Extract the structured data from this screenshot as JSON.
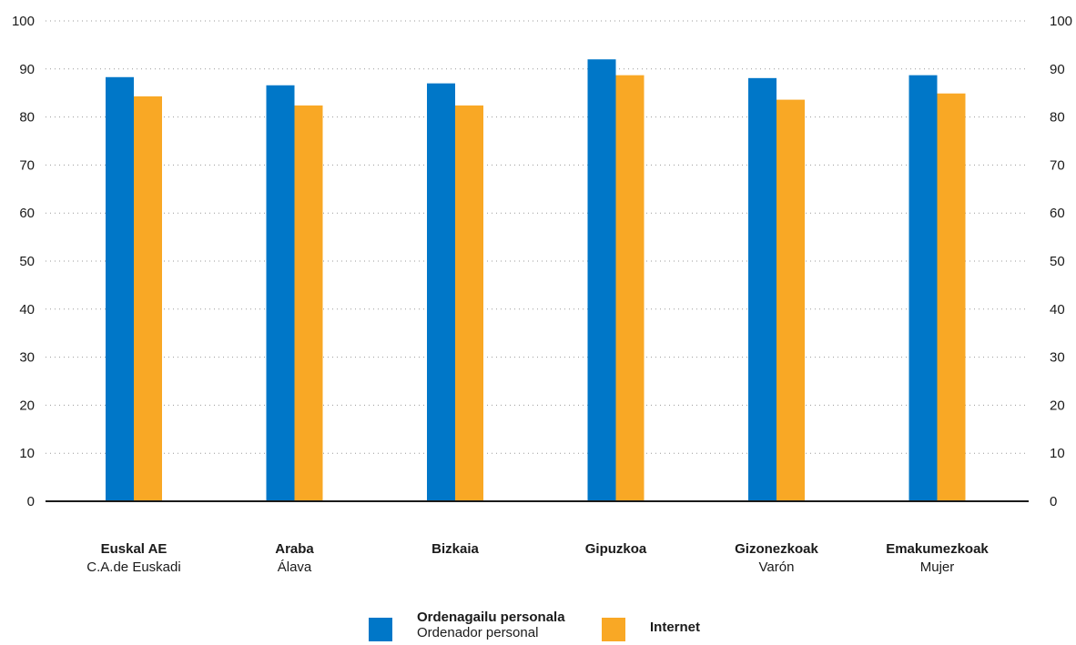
{
  "colors": {
    "series1": "#0077c8",
    "series2": "#f9a825",
    "grid": "#9a9a9a",
    "axis": "#1a1a1a"
  },
  "legend": [
    {
      "main": "Ordenagailu personala",
      "sub": "Ordenador personal"
    },
    {
      "main": "Internet",
      "sub": ""
    }
  ],
  "chart_data": {
    "type": "bar",
    "categories": [
      {
        "main": "Euskal AE",
        "sub": "C.A.de Euskadi"
      },
      {
        "main": "Araba",
        "sub": "Álava"
      },
      {
        "main": "Bizkaia",
        "sub": ""
      },
      {
        "main": "Gipuzkoa",
        "sub": ""
      },
      {
        "main": "Gizonezkoak",
        "sub": "Varón"
      },
      {
        "main": "Emakumezkoak",
        "sub": "Mujer"
      }
    ],
    "series": [
      {
        "name": "Ordenagailu personala / Ordenador personal",
        "values": [
          88.3,
          86.6,
          87.0,
          92.0,
          88.1,
          88.7
        ]
      },
      {
        "name": "Internet",
        "values": [
          84.3,
          82.4,
          82.4,
          88.7,
          83.6,
          84.9
        ]
      }
    ],
    "ylim": [
      0,
      100
    ],
    "yticks": [
      0,
      10,
      20,
      30,
      40,
      50,
      60,
      70,
      80,
      90,
      100
    ],
    "grid": true,
    "legend_position": "bottom"
  }
}
